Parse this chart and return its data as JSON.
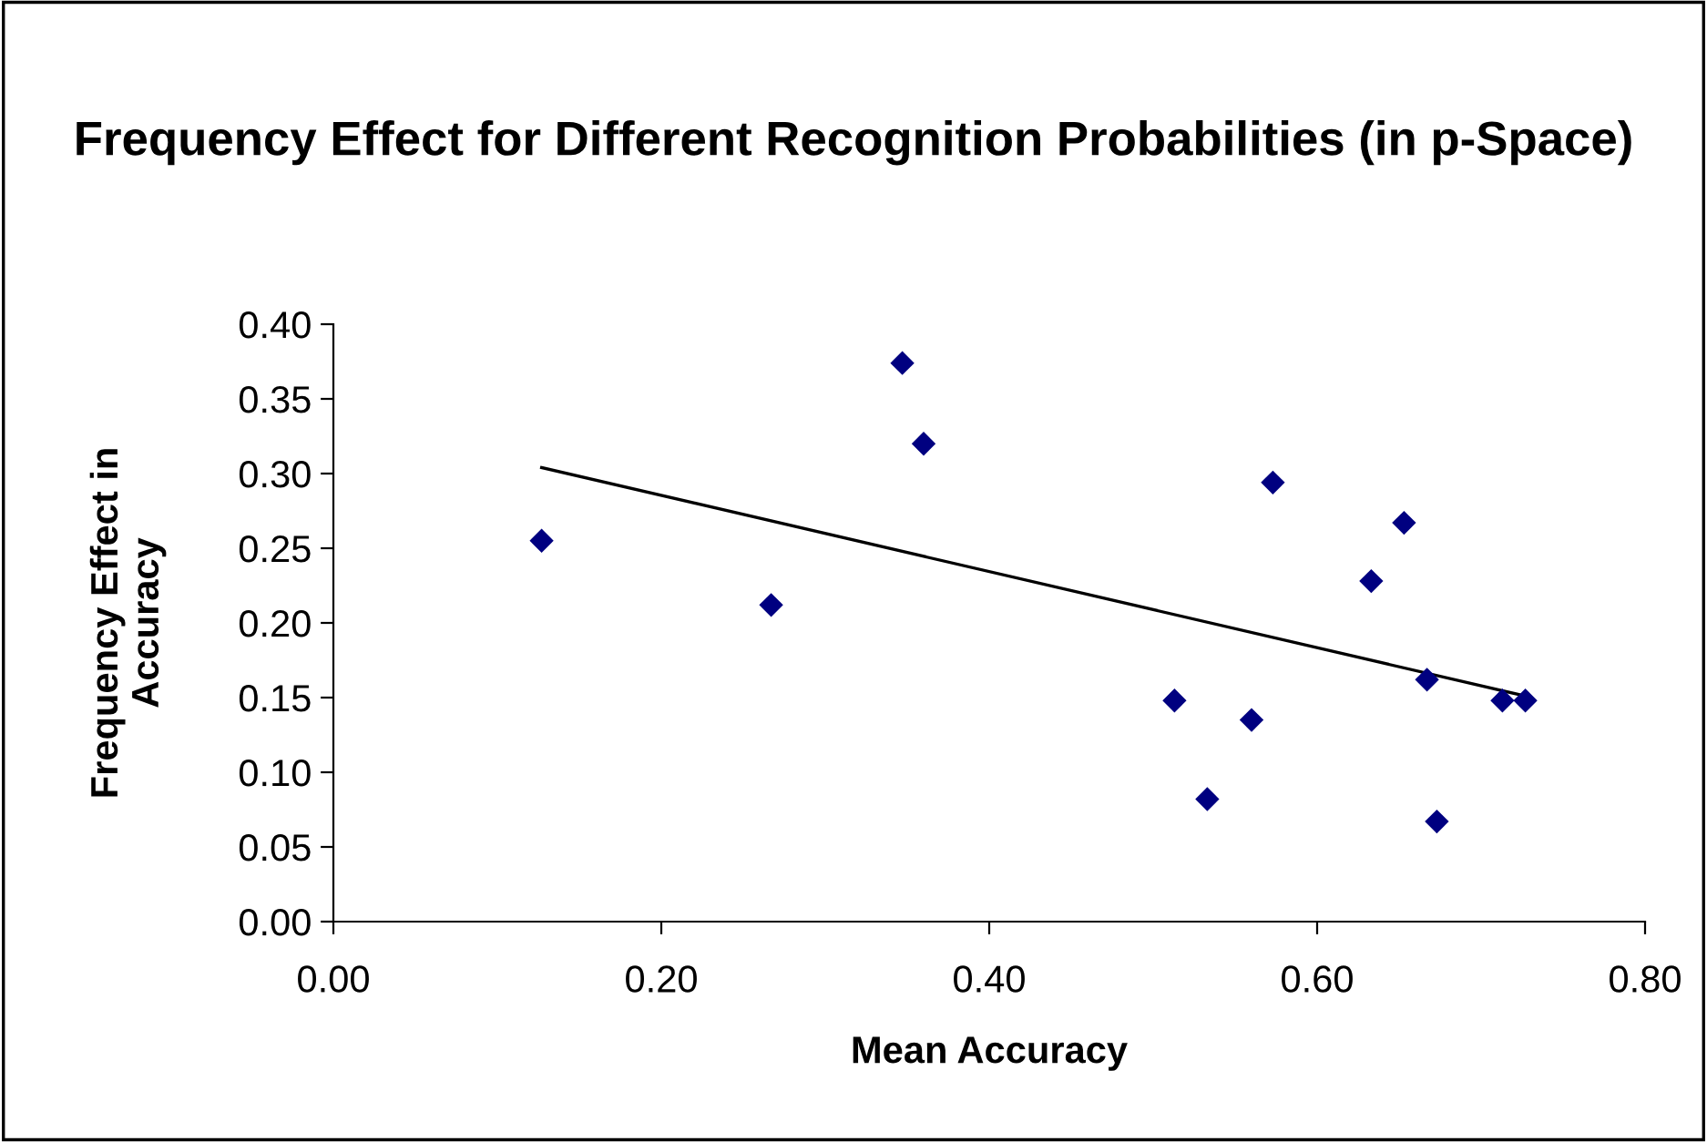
{
  "chart_data": {
    "type": "scatter",
    "title": "Frequency Effect for Different Recognition Probabilities (in p-Space)",
    "xlabel": "Mean Accuracy",
    "ylabel": "Frequency Effect in Accuracy",
    "series": [
      {
        "color": "#000080",
        "marker": "diamond",
        "x": [
          0.127,
          0.267,
          0.347,
          0.36,
          0.513,
          0.533,
          0.56,
          0.573,
          0.633,
          0.653,
          0.667,
          0.673,
          0.713,
          0.727
        ],
        "values": [
          0.255,
          0.212,
          0.374,
          0.32,
          0.148,
          0.082,
          0.135,
          0.294,
          0.228,
          0.267,
          0.162,
          0.067,
          0.148,
          0.148
        ]
      },
      {
        "type": "line",
        "color": "#000000",
        "x": [
          0.127,
          0.727
        ],
        "values": [
          0.304,
          0.151
        ]
      }
    ],
    "xlim": [
      0,
      0.8
    ],
    "xticks": [
      {
        "value": 0,
        "label": "0.00"
      },
      {
        "value": 0.2,
        "label": "0.20"
      },
      {
        "value": 0.4,
        "label": "0.40"
      },
      {
        "value": 0.6,
        "label": "0.60"
      },
      {
        "value": 0.8,
        "label": "0.80"
      }
    ],
    "ylim": [
      0,
      0.4
    ],
    "yticks": [
      {
        "value": 0,
        "label": "0.00"
      },
      {
        "value": 0.05,
        "label": "0.05"
      },
      {
        "value": 0.1,
        "label": "0.10"
      },
      {
        "value": 0.15,
        "label": "0.15"
      },
      {
        "value": 0.2,
        "label": "0.20"
      },
      {
        "value": 0.25,
        "label": "0.25"
      },
      {
        "value": 0.3,
        "label": "0.30"
      },
      {
        "value": 0.35,
        "label": "0.35"
      },
      {
        "value": 0.4,
        "label": "0.40"
      }
    ],
    "grid": false,
    "legend": false
  }
}
